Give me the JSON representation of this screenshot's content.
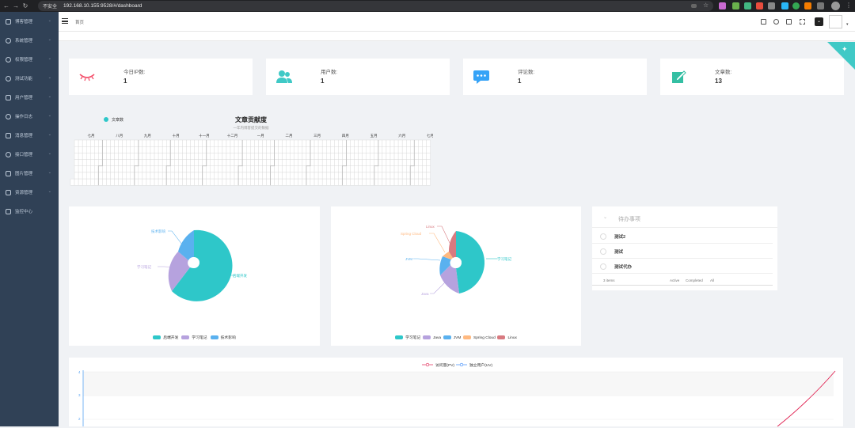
{
  "browser": {
    "security": "不安全",
    "url": "192.168.10.155:9528/#/dashboard"
  },
  "sidebar": {
    "items": [
      {
        "label": "博客管理"
      },
      {
        "label": "系统管理"
      },
      {
        "label": "权限管理"
      },
      {
        "label": "测试功能"
      },
      {
        "label": "用户管理"
      },
      {
        "label": "操作日志"
      },
      {
        "label": "消息管理"
      },
      {
        "label": "接口管理"
      },
      {
        "label": "图片管理"
      },
      {
        "label": "资源管理"
      },
      {
        "label": "监控中心"
      }
    ]
  },
  "navbar": {
    "breadcrumb": "首页"
  },
  "stats": [
    {
      "label": "今日IP数:",
      "value": "1",
      "color": "#f4516c"
    },
    {
      "label": "用户数:",
      "value": "1",
      "color": "#40c9c6"
    },
    {
      "label": "评论数:",
      "value": "1",
      "color": "#36a3f7"
    },
    {
      "label": "文章数:",
      "value": "13",
      "color": "#34bfa3"
    }
  ],
  "heatmap": {
    "title": "文章贡献度",
    "subtitle": "一年内博客提交的数据",
    "legend": "文章数",
    "months": [
      "七月",
      "八月",
      "九月",
      "十月",
      "十一月",
      "十二月",
      "一月",
      "二月",
      "三月",
      "四月",
      "五月",
      "六月",
      "七月"
    ]
  },
  "pie1": {
    "legend": [
      "后端开发",
      "学习笔记",
      "技术影响"
    ],
    "labels": {
      "a": "后端开发",
      "b": "学习笔记",
      "c": "技术影响"
    }
  },
  "pie2": {
    "legend": [
      "学习笔记",
      "Java",
      "JVM",
      "Spring Cloud",
      "Linux"
    ],
    "labels": {
      "a": "学习笔记",
      "b": "Java",
      "c": "JVM",
      "d": "Spring Cloud",
      "e": "Linux"
    }
  },
  "todo": {
    "placeholder": "待办事项",
    "items": [
      {
        "text": "测试2"
      },
      {
        "text": "测试"
      },
      {
        "text": "测试代办"
      }
    ],
    "count": "3 items",
    "filters": [
      "Active",
      "Completed",
      "All"
    ]
  },
  "linechart": {
    "legend": [
      "访问量(PV)",
      "独立用户(UV)"
    ],
    "yticks": [
      "4",
      "3",
      "2"
    ]
  }
}
